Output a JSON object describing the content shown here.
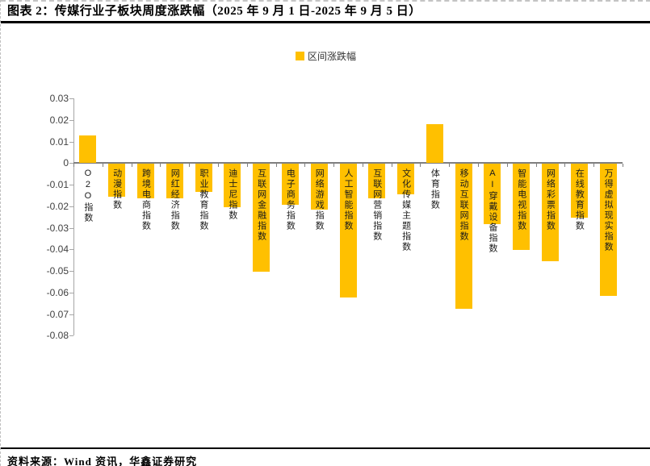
{
  "page": {
    "title": "图表 2：传媒行业子板块周度涨跌幅（2025 年 9 月 1 日-2025 年 9 月 5 日）",
    "source": "资料来源：Wind 资讯，华鑫证券研究"
  },
  "legend": {
    "label": "区间涨跌幅",
    "marker_color": "#FFC000"
  },
  "chart_data": {
    "type": "bar",
    "title": "传媒行业子板块周度涨跌幅（2025年9月1日-2025年9月5日）",
    "legend_entries": [
      "区间涨跌幅"
    ],
    "legend_position": "top",
    "grid": false,
    "bar_color": "#FFC000",
    "axis_color": "#a6a6a6",
    "zero_line_color": "#7f7f7f",
    "ylim": [
      -0.08,
      0.03
    ],
    "ytick_step": 0.01,
    "categories": [
      "O2O指数",
      "动漫指数",
      "跨境电商指数",
      "网红经济指数",
      "职业教育指数",
      "迪士尼指数",
      "互联网金融指数",
      "电子商务指数",
      "网络游戏指数",
      "人工智能指数",
      "互联网营销指数",
      "文化传媒主题指数",
      "体育指数",
      "移动互联网指数",
      "AI穿戴设备指数",
      "智能电视指数",
      "网络彩票指数",
      "在线教育指数",
      "万得虚拟现实指数"
    ],
    "values": [
      0.013,
      -0.015,
      -0.016,
      -0.016,
      -0.013,
      -0.02,
      -0.05,
      -0.019,
      -0.021,
      -0.062,
      -0.016,
      -0.014,
      0.018,
      -0.067,
      -0.028,
      -0.04,
      -0.045,
      -0.025,
      -0.061
    ]
  }
}
